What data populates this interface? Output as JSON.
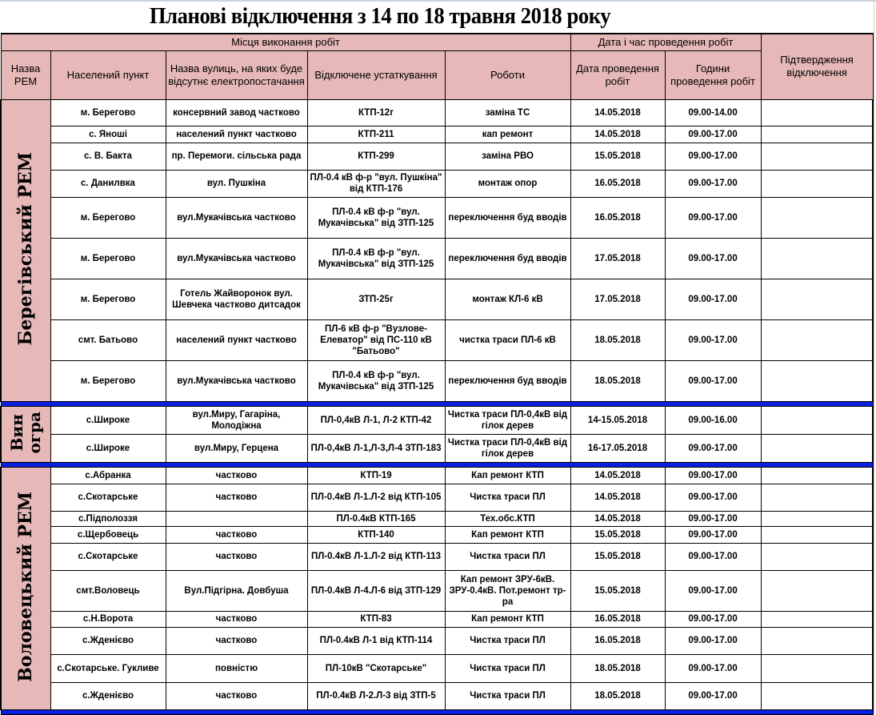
{
  "title": "Планові відключення з 14  по 18 травня 2018  року",
  "header": {
    "group_place": "Місця виконання робіт",
    "group_datetime": "Дата і час проведення робіт",
    "rem": "Назва РЕМ",
    "settlement": "Населений пункт",
    "streets": "Назва вулиць, на яких буде відсутнє електропостачання",
    "equipment": "Відключене устаткування",
    "works": "Роботи",
    "date": "Дата проведення робіт",
    "hours": "Години проведення робіт",
    "confirmation": "Підтвердження відключення"
  },
  "colors": {
    "header_bg": "#e6b8b7",
    "separator": "#0a1fe0"
  },
  "groups": [
    {
      "rem": "Берегівський РЕМ",
      "rows": [
        [
          "м. Берегово",
          "консервний завод частково",
          "КТП-12г",
          "заміна ТС",
          "14.05.2018",
          "09.00-14.00"
        ],
        [
          "с. Яноші",
          "населений пункт частково",
          "КТП-211",
          "кап ремонт",
          "14.05.2018",
          "09.00-17.00"
        ],
        [
          "с. В. Бакта",
          "пр. Перемоги.  сільська рада",
          "КТП-299",
          "заміна РВО",
          "15.05.2018",
          "09.00-17.00"
        ],
        [
          "с. Данилвка",
          "вул. Пушкіна",
          "ПЛ-0.4 кВ ф-р \"вул. Пушкіна\" від КТП-176",
          "монтаж опор",
          "16.05.2018",
          "09.00-17.00"
        ],
        [
          "м. Берегово",
          "вул.Мукачівська частково",
          "ПЛ-0.4 кВ ф-р \"вул. Мукачівська\" від ЗТП-125",
          "переключення буд вводів",
          "16.05.2018",
          "09.00-17.00"
        ],
        [
          "м. Берегово",
          "вул.Мукачівська частково",
          "ПЛ-0.4 кВ ф-р \"вул. Мукачівська\" від ЗТП-125",
          "переключення буд вводів",
          "17.05.2018",
          "09.00-17.00"
        ],
        [
          "м. Берегово",
          "Готель Жайворонок вул. Шевчека частково дитсадок",
          "ЗТП-25г",
          "монтаж КЛ-6 кВ",
          "17.05.2018",
          "09.00-17.00"
        ],
        [
          "смт. Батьово",
          "населений пункт частково",
          "ПЛ-6 кВ ф-р \"Вузлове-Елеватор\" від ПС-110 кВ \"Батьово\"",
          "чистка траси ПЛ-6 кВ",
          "18.05.2018",
          "09.00-17.00"
        ],
        [
          "м. Берегово",
          "вул.Мукачівська частково",
          "ПЛ-0.4 кВ ф-р \"вул. Мукачівська\" від ЗТП-125",
          "переключення буд вводів",
          "18.05.2018",
          "09.00-17.00"
        ]
      ]
    },
    {
      "rem": "Вин\nогра",
      "rows": [
        [
          "с.Широке",
          "вул.Миру, Гагаріна, Молодіжна",
          "ПЛ-0,4кВ   Л-1, Л-2 КТП-42",
          "Чистка траси ПЛ-0,4кВ від гілок дерев",
          "14-15.05.2018",
          "09.00-16.00"
        ],
        [
          "с.Широке",
          "вул.Миру, Герцена",
          "ПЛ-0,4кВ  Л-1,Л-3,Л-4 ЗТП-183",
          "Чистка траси ПЛ-0,4кВ від гілок дерев",
          "16-17.05.2018",
          "09.00-17.00"
        ]
      ]
    },
    {
      "rem": "Воловецький РЕМ",
      "rows": [
        [
          "с.Абранка",
          "частково",
          "КТП-19",
          "Кап ремонт КТП",
          "14.05.2018",
          "09.00-17.00"
        ],
        [
          "с.Скотарське",
          "частково",
          "ПЛ-0.4кВ  Л-1.Л-2 від КТП-105",
          "Чистка траси ПЛ",
          "14.05.2018",
          "09.00-17.00"
        ],
        [
          "с.Підполоззя",
          "",
          "ПЛ-0.4кВ  КТП-165",
          "Тех.обс.КТП",
          "14.05.2018",
          "09.00-17.00"
        ],
        [
          "с.Щербовець",
          "частково",
          "КТП-140",
          "Кап ремонт КТП",
          "15.05.2018",
          "09.00-17.00"
        ],
        [
          "с.Скотарське",
          "частково",
          "ПЛ-0.4кВ  Л-1.Л-2 від КТП-113",
          "Чистка траси ПЛ",
          "15.05.2018",
          "09.00-17.00"
        ],
        [
          "смт.Воловець",
          "Вул.Підгірна. Довбуша",
          "ПЛ-0.4кВ  Л-4.Л-6 від ЗТП-129",
          "Кап ремонт ЗРУ-6кВ. ЗРУ-0.4кВ. Пот.ремонт тр-ра",
          "15.05.2018",
          "09.00-17.00"
        ],
        [
          "с.Н.Ворота",
          "частково",
          "КТП-83",
          "Кап ремонт КТП",
          "16.05.2018",
          "09.00-17.00"
        ],
        [
          "с.Жденієво",
          "частково",
          "ПЛ-0.4кВ  Л-1 від КТП-114",
          "Чистка траси ПЛ",
          "16.05.2018",
          "09.00-17.00"
        ],
        [
          "с.Скотарське. Гукливе",
          "повністю",
          "ПЛ-10кВ \"Скотарське\"",
          "Чистка траси ПЛ",
          "18.05.2018",
          "09.00-17.00"
        ],
        [
          "с.Жденієво",
          "частково",
          "ПЛ-0.4кВ  Л-2.Л-3 від ЗТП-5",
          "Чистка траси ПЛ",
          "18.05.2018",
          "09.00-17.00"
        ]
      ]
    }
  ]
}
